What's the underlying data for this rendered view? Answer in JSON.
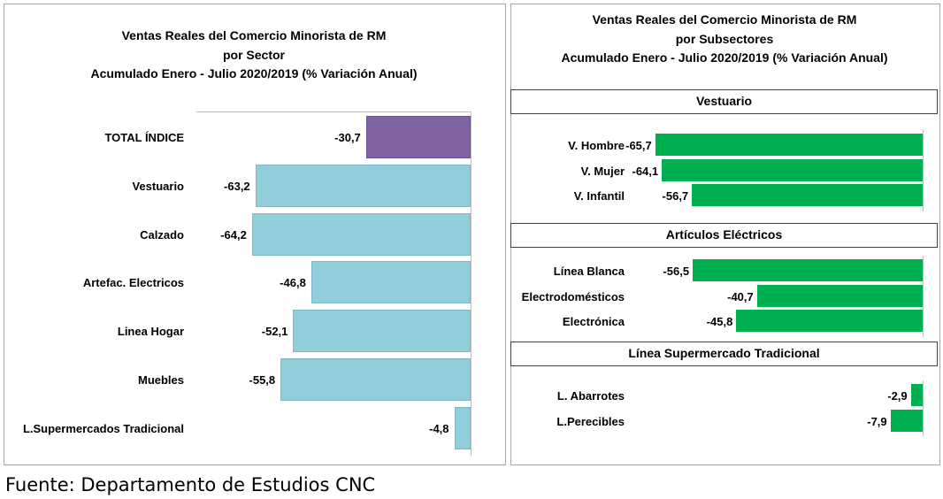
{
  "left_chart": {
    "title_line1": "Ventas Reales del Comercio Minorista de RM",
    "title_line2": "por Sector",
    "title_line3": "Acumulado Enero - Julio 2020/2019 (% Variación Anual)"
  },
  "right_chart": {
    "title_line1": "Ventas Reales del Comercio Minorista de RM",
    "title_line2": "por Subsectores",
    "title_line3": "Acumulado Enero - Julio 2020/2019 (% Variación Anual)"
  },
  "source": "Fuente: Departamento de Estudios CNC",
  "colors": {
    "total": "#8064a2",
    "sector": "#92cddc",
    "subsector": "#00b050"
  },
  "chart_data": [
    {
      "type": "bar",
      "orientation": "horizontal",
      "categories": [
        "TOTAL ÍNDICE",
        "Vestuario",
        "Calzado",
        "Artefac. Electricos",
        "Linea Hogar",
        "Muebles",
        "L.Supermercados Tradicional"
      ],
      "values": [
        -30.7,
        -63.2,
        -64.2,
        -46.8,
        -52.1,
        -55.8,
        -4.8
      ],
      "value_labels": [
        "-30,7",
        "-63,2",
        "-64,2",
        "-46,8",
        "-52,1",
        "-55,8",
        "-4,8"
      ],
      "title": "Ventas Reales del Comercio Minorista de RM por Sector Acumulado Enero - Julio 2020/2019 (% Variación Anual)"
    },
    {
      "type": "bar",
      "orientation": "horizontal",
      "title": "Ventas Reales del Comercio Minorista de RM por Subsectores Acumulado Enero - Julio 2020/2019 (% Variación Anual)",
      "groups": [
        {
          "name": "Vestuario",
          "categories": [
            "V. Hombre",
            "V. Mujer",
            "V. Infantil"
          ],
          "values": [
            -65.7,
            -64.1,
            -56.7
          ],
          "value_labels": [
            "-65,7",
            "-64,1",
            "-56,7"
          ]
        },
        {
          "name": "Artículos Eléctricos",
          "categories": [
            "Línea Blanca",
            "Electrodomésticos",
            "Electrónica"
          ],
          "values": [
            -56.5,
            -40.7,
            -45.8
          ],
          "value_labels": [
            "-56,5",
            "-40,7",
            "-45,8"
          ]
        },
        {
          "name": "Línea  Supermercado Tradicional",
          "categories": [
            "L. Abarrotes",
            "L.Perecibles"
          ],
          "values": [
            -2.9,
            -7.9
          ],
          "value_labels": [
            "-2,9",
            "-7,9"
          ]
        }
      ]
    }
  ]
}
